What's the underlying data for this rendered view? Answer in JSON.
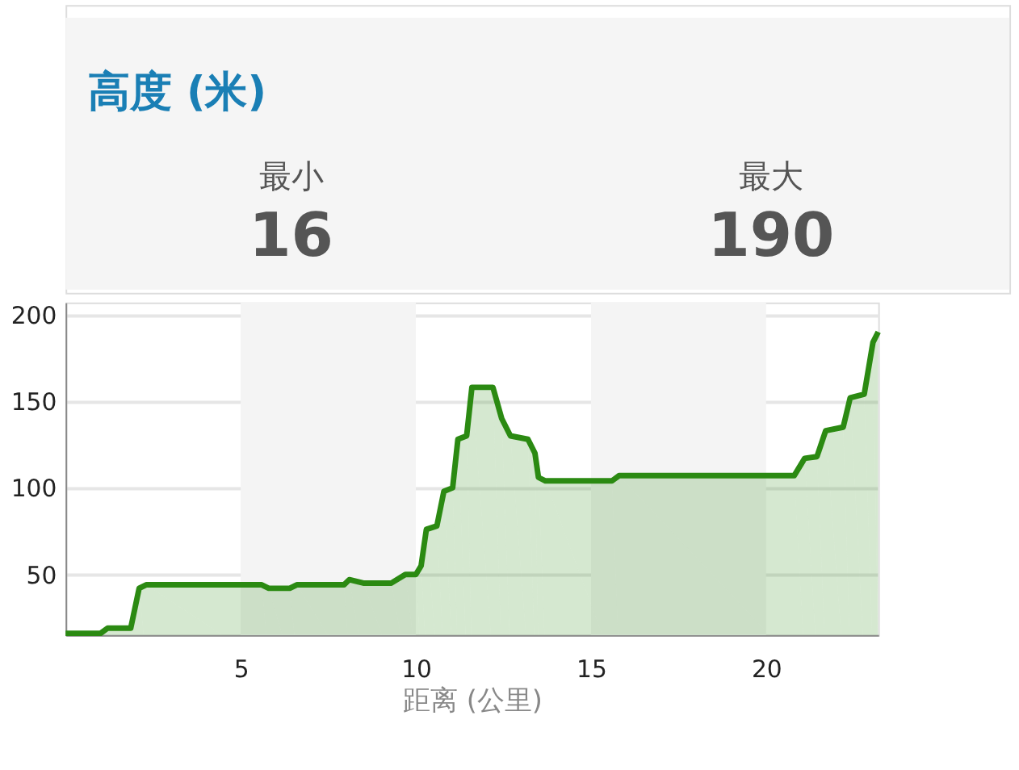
{
  "chart_data": {
    "type": "area",
    "title": "高度 (米)",
    "xlabel": "距离 (公里)",
    "annotations": [
      "最小",
      "16",
      "最大",
      "190"
    ],
    "x": [
      0,
      1.0,
      1.2,
      1.86,
      2.1,
      2.3,
      5.6,
      5.8,
      6.4,
      6.6,
      7.95,
      8.1,
      8.5,
      9.3,
      9.7,
      10.0,
      10.15,
      10.3,
      10.6,
      10.8,
      11.05,
      11.2,
      11.45,
      11.6,
      12.2,
      12.45,
      12.7,
      13.2,
      13.4,
      13.5,
      13.7,
      15.6,
      15.8,
      20.8,
      21.1,
      21.45,
      21.7,
      22.2,
      22.4,
      22.8,
      23.05,
      23.2
    ],
    "series": [
      {
        "color": "#2b8a12",
        "values": [
          16,
          16,
          19,
          19,
          42,
          44,
          44,
          42,
          42,
          44,
          44,
          47,
          45,
          45,
          50,
          50,
          55,
          76,
          78,
          98,
          100,
          128,
          130,
          158,
          158,
          140,
          130,
          128,
          120,
          106,
          104,
          104,
          107,
          107,
          117,
          118,
          133,
          135,
          152,
          154,
          184,
          190
        ]
      }
    ],
    "xlim": [
      0,
      23.2
    ],
    "ylim": [
      15,
      207
    ],
    "xticks": [
      5,
      10,
      15,
      20
    ],
    "yticks": [
      50,
      100,
      150,
      200
    ],
    "grid": "y",
    "bands": [
      {
        "axis": "x",
        "from": 5,
        "to": 10,
        "color": "#f4f4f4"
      },
      {
        "axis": "x",
        "from": 15,
        "to": 20,
        "color": "#f4f4f4"
      }
    ]
  }
}
